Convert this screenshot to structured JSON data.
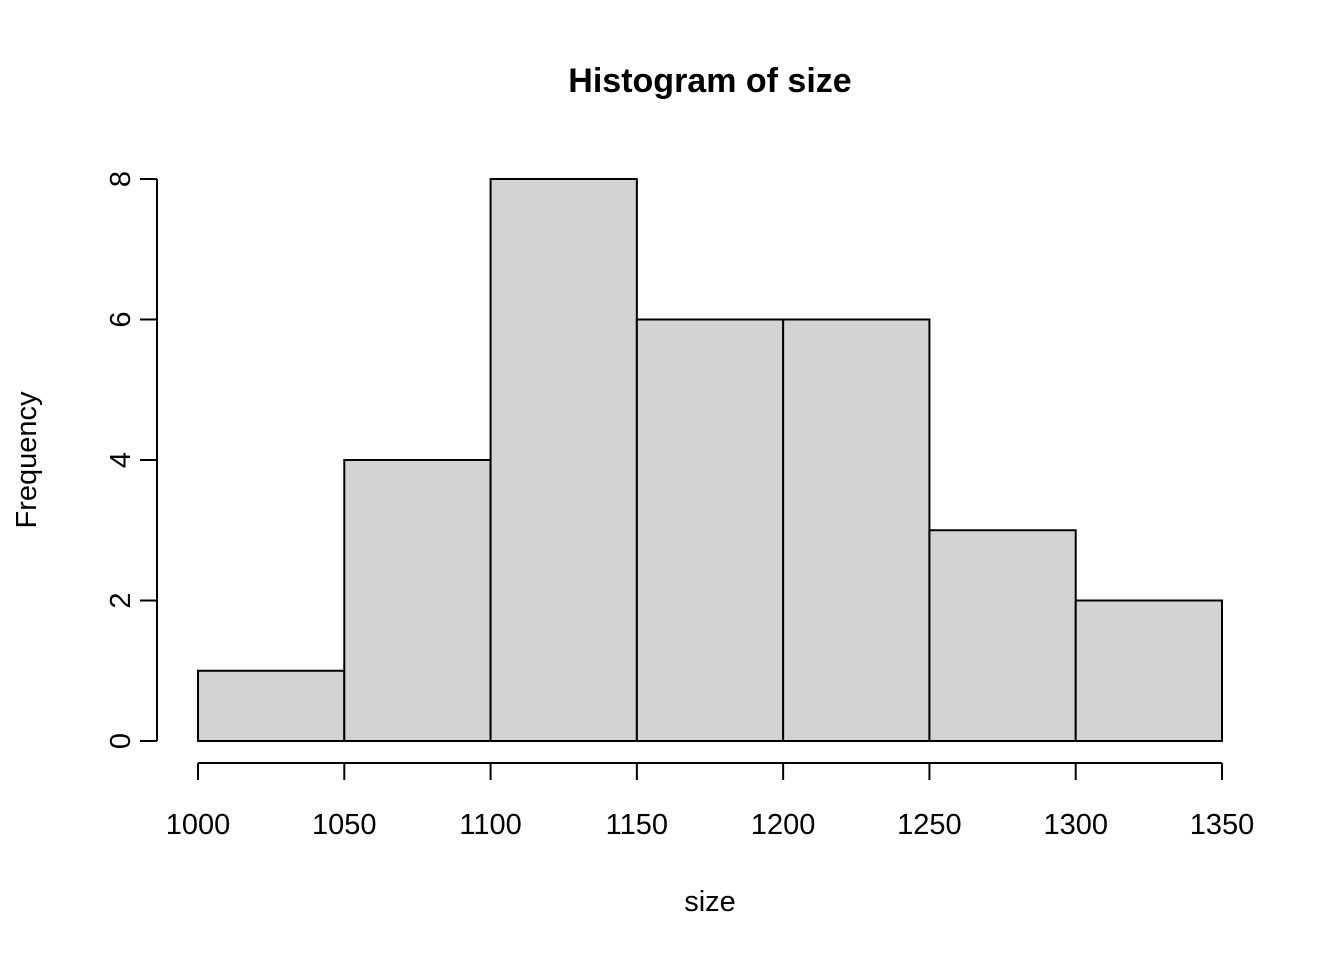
{
  "chart_data": {
    "type": "bar",
    "subtype": "histogram",
    "title": "Histogram of size",
    "xlabel": "size",
    "ylabel": "Frequency",
    "bins": [
      {
        "from": 1000,
        "to": 1050,
        "count": 1
      },
      {
        "from": 1050,
        "to": 1100,
        "count": 4
      },
      {
        "from": 1100,
        "to": 1150,
        "count": 8
      },
      {
        "from": 1150,
        "to": 1200,
        "count": 6
      },
      {
        "from": 1200,
        "to": 1250,
        "count": 6
      },
      {
        "from": 1250,
        "to": 1300,
        "count": 3
      },
      {
        "from": 1300,
        "to": 1350,
        "count": 2
      }
    ],
    "xlim": [
      1000,
      1350
    ],
    "ylim": [
      0,
      8
    ],
    "x_ticks": [
      "1000",
      "1050",
      "1100",
      "1150",
      "1200",
      "1250",
      "1300",
      "1350"
    ],
    "y_ticks": [
      "0",
      "2",
      "4",
      "6",
      "8"
    ],
    "grid": false,
    "legend": "none",
    "bar_color": "#d3d3d3",
    "edge_color": "#000000"
  }
}
